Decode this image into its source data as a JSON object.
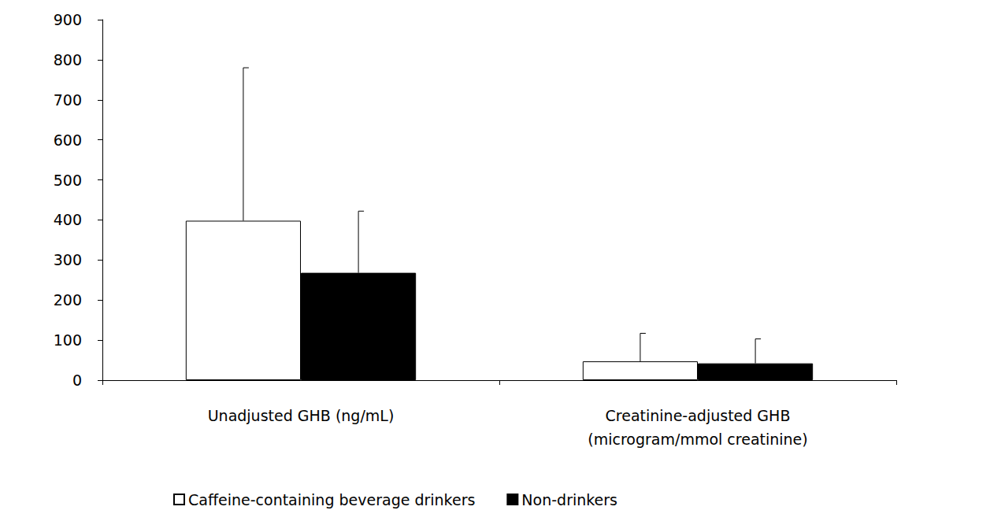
{
  "chart_data": {
    "type": "bar",
    "categories": [
      "Unadjusted GHB (ng/mL)",
      "Creatinine-adjusted GHB\n(microgram/mmol creatinine)"
    ],
    "series": [
      {
        "name": "Caffeine-containing beverage drinkers",
        "color": "#ffffff",
        "values": [
          398,
          47
        ],
        "errors": [
          382,
          70
        ]
      },
      {
        "name": "Non-drinkers",
        "color": "#000000",
        "values": [
          268,
          42
        ],
        "errors": [
          154,
          61
        ]
      }
    ],
    "ylim": [
      0,
      900
    ],
    "yticks": [
      0,
      100,
      200,
      300,
      400,
      500,
      600,
      700,
      800,
      900
    ],
    "grid": false,
    "legend": "bottom"
  }
}
